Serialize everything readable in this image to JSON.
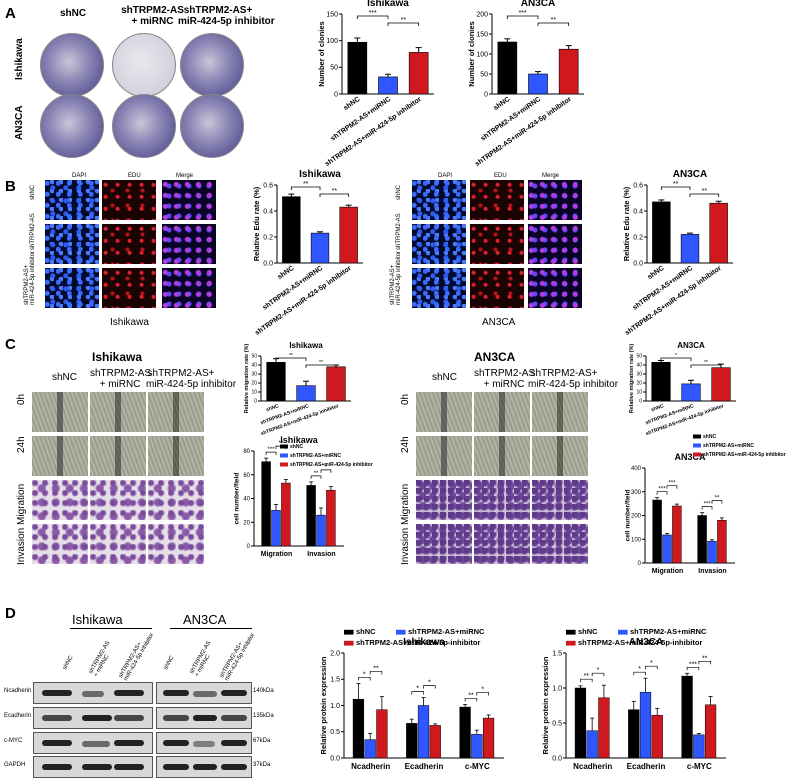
{
  "panels": {
    "A": {
      "letter": "A",
      "col_labels": [
        "shNC",
        "shTRPM2-AS\n+ miRNC",
        "shTRPM2-AS+\nmiR-424-5p inhibitor"
      ],
      "row_labels": [
        "Ishikawa",
        "AN3CA"
      ]
    },
    "B": {
      "letter": "B",
      "col_labels": [
        "DAPI",
        "EDU",
        "Merge"
      ],
      "row_labels": [
        "shNC",
        "shTRPM2-AS",
        "shTRPM2-AS+\nmiR-424-5p inhibitor"
      ],
      "left_caption": "Ishikawa",
      "right_caption": "AN3CA"
    },
    "C": {
      "letter": "C",
      "left_title": "Ishikawa",
      "right_title": "AN3CA",
      "col_labels": [
        "shNC",
        "shTRPM2-AS\n+ miRNC",
        "shTRPM2-AS+\nmiR-424-5p inhibitor"
      ],
      "row_labels": [
        "0h",
        "24h",
        "Invasion Migration"
      ]
    },
    "D": {
      "letter": "D",
      "blot_titles": [
        "Ishikawa",
        "AN3CA"
      ],
      "lane_labels": [
        "shNC",
        "shTRPM2-AS\n+ miRNC",
        "shTRPM2-AS+\nmiR-424-5p inhibitor"
      ],
      "proteins": [
        "Ncadherin",
        "Ecadherin",
        "c-MYC",
        "GAPDH"
      ],
      "sizes": [
        "140kDa",
        "135kDa",
        "67kDa",
        "37kDa"
      ]
    }
  },
  "colors": {
    "black": "#000000",
    "blue": "#2f56ff",
    "red": "#d0191f"
  },
  "chart_data": [
    {
      "type": "bar",
      "title": "Ishikawa",
      "ylabel": "Number of clonies",
      "ylim": [
        0,
        150
      ],
      "yticks": [
        0,
        50,
        100,
        150
      ],
      "categories": [
        "shNC",
        "shTRPM2-AS+miRNC",
        "shTRPM2-AS+miR-424-5p inhibitor"
      ],
      "values": [
        97,
        32,
        78
      ],
      "errors": [
        8,
        5,
        9
      ],
      "sig": [
        {
          "label": "***",
          "from": 0,
          "to": 1
        },
        {
          "label": "**",
          "from": 1,
          "to": 2
        }
      ]
    },
    {
      "type": "bar",
      "title": "AN3CA",
      "ylabel": "Number of clonies",
      "ylim": [
        0,
        200
      ],
      "yticks": [
        0,
        50,
        100,
        150,
        200
      ],
      "categories": [
        "shNC",
        "shTRPM2-AS+miRNC",
        "shTRPM2-AS+miR-424-5p inhibitor"
      ],
      "values": [
        130,
        50,
        112
      ],
      "errors": [
        8,
        6,
        9
      ],
      "sig": [
        {
          "label": "***",
          "from": 0,
          "to": 1
        },
        {
          "label": "**",
          "from": 1,
          "to": 2
        }
      ]
    },
    {
      "type": "bar",
      "title": "Ishikawa",
      "ylabel": "Relative Edu rate (%)",
      "ylim": [
        0,
        0.6
      ],
      "yticks": [
        0.0,
        0.2,
        0.4,
        0.6
      ],
      "categories": [
        "shNC",
        "shTRPM2-AS+miRNC",
        "shTRPM2-AS+miR-424-5p inhibitor"
      ],
      "values": [
        0.51,
        0.23,
        0.43
      ],
      "errors": [
        0.02,
        0.01,
        0.015
      ],
      "sig": [
        {
          "label": "**",
          "from": 0,
          "to": 1
        },
        {
          "label": "**",
          "from": 1,
          "to": 2
        }
      ]
    },
    {
      "type": "bar",
      "title": "AN3CA",
      "ylabel": "Relative Edu rate (%)",
      "ylim": [
        0,
        0.6
      ],
      "yticks": [
        0.0,
        0.2,
        0.4,
        0.6
      ],
      "categories": [
        "shNC",
        "shTRPM2-AS+miRNC",
        "shTRPM2-AS+miR-424-5p inhibitor"
      ],
      "values": [
        0.47,
        0.22,
        0.46
      ],
      "errors": [
        0.015,
        0.01,
        0.015
      ],
      "sig": [
        {
          "label": "**",
          "from": 0,
          "to": 1
        },
        {
          "label": "**",
          "from": 1,
          "to": 2
        }
      ]
    },
    {
      "type": "bar",
      "title": "Ishikawa",
      "ylabel": "Relative migration rate (%)",
      "ylim": [
        0,
        50
      ],
      "yticks": [
        0,
        10,
        20,
        30,
        40,
        50
      ],
      "categories": [
        "shNC",
        "shTRPM2-AS+miRNC",
        "shTRPM2-AS+miR-424-5p inhibitor"
      ],
      "values": [
        43,
        17,
        38
      ],
      "errors": [
        4,
        5,
        2
      ],
      "sig": [
        {
          "label": "**",
          "from": 0,
          "to": 1
        },
        {
          "label": "**",
          "from": 1,
          "to": 2
        }
      ]
    },
    {
      "type": "bar",
      "title": "AN3CA",
      "ylabel": "Relative migration rate (%)",
      "ylim": [
        0,
        50
      ],
      "yticks": [
        0,
        10,
        20,
        30,
        40,
        50
      ],
      "categories": [
        "shNC",
        "shTRPM2-AS+miRNC",
        "shTRPM2-AS+miR-424-5p inhibitor"
      ],
      "values": [
        43,
        19,
        37
      ],
      "errors": [
        2,
        4,
        4
      ],
      "sig": [
        {
          "label": "*",
          "from": 0,
          "to": 1
        },
        {
          "label": "**",
          "from": 1,
          "to": 2
        }
      ]
    },
    {
      "type": "bar",
      "title": "Ishikawa",
      "ylabel": "cell number/field",
      "ylim": [
        0,
        80
      ],
      "yticks": [
        0,
        20,
        40,
        60,
        80
      ],
      "categories": [
        "Migration",
        "Invasion"
      ],
      "series": [
        {
          "name": "shNC",
          "values": [
            71,
            51
          ],
          "errors": [
            3,
            3
          ]
        },
        {
          "name": "shTRPM2-AS+miRNC",
          "values": [
            30,
            26
          ],
          "errors": [
            5,
            6
          ]
        },
        {
          "name": "shTRPM2-AS+miR-424-5p inhibitor",
          "values": [
            53,
            47
          ],
          "errors": [
            3,
            3
          ]
        }
      ],
      "sig_labels": [
        "***",
        "**",
        "**",
        "*"
      ],
      "legend": "top-right"
    },
    {
      "type": "bar",
      "title": "AN3CA",
      "ylabel": "cell number/field",
      "ylim": [
        0,
        400
      ],
      "yticks": [
        0,
        100,
        200,
        300,
        400
      ],
      "categories": [
        "Migration",
        "Invasion"
      ],
      "series": [
        {
          "name": "shNC",
          "values": [
            265,
            200
          ],
          "errors": [
            10,
            12
          ]
        },
        {
          "name": "shTRPM2-AS+miRNC",
          "values": [
            118,
            92
          ],
          "errors": [
            6,
            6
          ]
        },
        {
          "name": "shTRPM2-AS+miR-424-5p inhibitor",
          "values": [
            240,
            180
          ],
          "errors": [
            8,
            10
          ]
        }
      ],
      "sig_labels": [
        "***",
        "***",
        "***",
        "**"
      ],
      "legend": "top-right"
    },
    {
      "type": "bar",
      "title": "Ishikawa",
      "ylabel": "Relative protein expression",
      "ylim": [
        0,
        2.0
      ],
      "yticks": [
        0.0,
        0.5,
        1.0,
        1.5,
        2.0
      ],
      "categories": [
        "Ncadherin",
        "Ecadherin",
        "c-MYC"
      ],
      "series": [
        {
          "name": "shNC",
          "values": [
            1.12,
            0.66,
            0.97
          ],
          "errors": [
            0.3,
            0.08,
            0.05
          ]
        },
        {
          "name": "shTRPM2-AS+miRNC",
          "values": [
            0.35,
            1.0,
            0.45
          ],
          "errors": [
            0.12,
            0.15,
            0.08
          ]
        },
        {
          "name": "shTRPM2-AS+miR-424-5p-inhibitor",
          "values": [
            0.92,
            0.62,
            0.76
          ],
          "errors": [
            0.25,
            0.03,
            0.06
          ]
        }
      ],
      "sig_labels": [
        "*",
        "**",
        "*",
        "*",
        "**",
        "*"
      ],
      "legend": "top"
    },
    {
      "type": "bar",
      "title": "AN3CA",
      "ylabel": "Relative protein expression",
      "ylim": [
        0,
        1.5
      ],
      "yticks": [
        0.0,
        0.5,
        1.0,
        1.5
      ],
      "categories": [
        "Ncadherin",
        "Ecadherin",
        "c-MYC"
      ],
      "series": [
        {
          "name": "shNC",
          "values": [
            1.0,
            0.69,
            1.17
          ],
          "errors": [
            0.03,
            0.12,
            0.04
          ]
        },
        {
          "name": "shTRPM2-AS+miRNC",
          "values": [
            0.39,
            0.94,
            0.33
          ],
          "errors": [
            0.18,
            0.2,
            0.02
          ]
        },
        {
          "name": "shTRPM2-AS+miR-424-5p-inhibitor",
          "values": [
            0.86,
            0.61,
            0.76
          ],
          "errors": [
            0.18,
            0.1,
            0.12
          ]
        }
      ],
      "sig_labels": [
        "**",
        "*",
        "*",
        "*",
        "***",
        "**"
      ],
      "legend": "top"
    }
  ]
}
